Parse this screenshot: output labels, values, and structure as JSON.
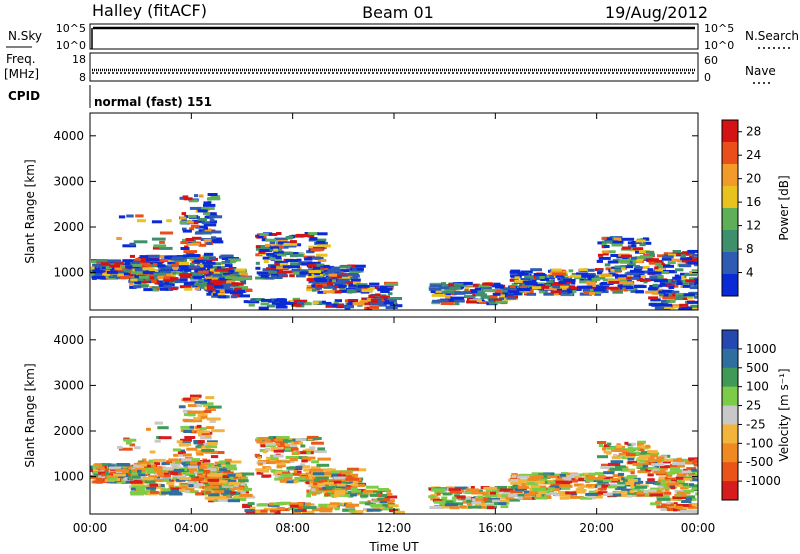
{
  "header": {
    "title": "Halley (fitACF)",
    "beam": "Beam 01",
    "date": "19/Aug/2012"
  },
  "strips": {
    "nsky": {
      "label": "N.Sky",
      "ticks": [
        "10^5",
        "10^0"
      ]
    },
    "nsearch": {
      "label": "N.Search",
      "ticks": [
        "10^5",
        "10^0"
      ]
    },
    "freq": {
      "label_line1": "Freq.",
      "label_line2": "[MHz]",
      "ticks": [
        "18",
        "8"
      ]
    },
    "nave": {
      "label": "Nave",
      "ticks": [
        "60",
        "0"
      ]
    },
    "cpid": {
      "label": "CPID",
      "mode_text": "normal (fast) 151"
    }
  },
  "chart_data": [
    {
      "type": "heatmap",
      "name": "power",
      "xlabel": "",
      "ylabel": "Slant Range [km]",
      "x_ticks": [
        "00:00",
        "04:00",
        "08:00",
        "12:00",
        "16:00",
        "20:00",
        "00:00"
      ],
      "x_range_hours": [
        0,
        24
      ],
      "y_ticks": [
        1000,
        2000,
        3000,
        4000
      ],
      "y_range_km": [
        180,
        4500
      ],
      "colorbar": {
        "label": "Power [dB]",
        "ticks": [
          4,
          8,
          12,
          16,
          20,
          24,
          28
        ],
        "range": [
          0,
          30
        ],
        "colors": [
          "#0a2ad6",
          "#2f5bb5",
          "#3e8f6c",
          "#5fae58",
          "#e8c21e",
          "#f29a2a",
          "#ea4f1a",
          "#d41414"
        ]
      }
    },
    {
      "type": "heatmap",
      "name": "velocity",
      "xlabel": "Time UT",
      "ylabel": "Slant Range [km]",
      "x_ticks": [
        "00:00",
        "04:00",
        "08:00",
        "12:00",
        "16:00",
        "20:00",
        "00:00"
      ],
      "x_range_hours": [
        0,
        24
      ],
      "y_ticks": [
        1000,
        2000,
        3000,
        4000
      ],
      "y_range_km": [
        180,
        4500
      ],
      "colorbar": {
        "label": "Velocity [m s⁻¹]",
        "ticks": [
          "1000",
          "500",
          "100",
          "25",
          "-25",
          "-100",
          "-500",
          "-1000"
        ],
        "colors": [
          "#2448b0",
          "#2f6fa0",
          "#3f9a58",
          "#7ccc48",
          "#c8c8c8",
          "#f2b43a",
          "#ef8a22",
          "#ea5418",
          "#d61c1c"
        ]
      }
    }
  ]
}
